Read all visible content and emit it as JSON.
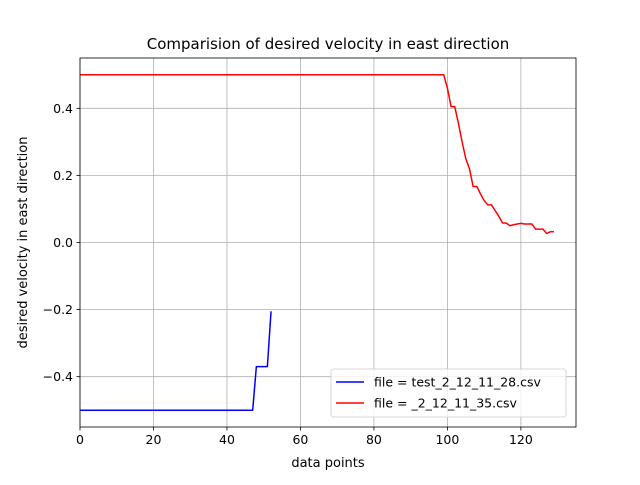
{
  "chart_data": {
    "type": "line",
    "title": "Comparision of desired velocity in east direction",
    "xlabel": "data points",
    "ylabel": "desired velocity in east direction",
    "xlim": [
      0,
      135
    ],
    "ylim": [
      -0.55,
      0.55
    ],
    "xticks": [
      0,
      20,
      40,
      60,
      80,
      100,
      120
    ],
    "xtick_labels": [
      "0",
      "20",
      "40",
      "60",
      "80",
      "100",
      "120"
    ],
    "yticks": [
      -0.4,
      -0.2,
      0.0,
      0.2,
      0.4
    ],
    "ytick_labels": [
      "−0.4",
      "−0.2",
      "0.0",
      "0.2",
      "0.4"
    ],
    "grid": true,
    "legend_position": "lower-right",
    "series": [
      {
        "name": "file = test_2_12_11_28.csv",
        "color": "#0000ff",
        "points": [
          [
            0,
            -0.5
          ],
          [
            47,
            -0.5
          ],
          [
            48,
            -0.37
          ],
          [
            51,
            -0.37
          ],
          [
            52,
            -0.205
          ]
        ]
      },
      {
        "name": "file = _2_12_11_35.csv",
        "color": "#ff0000",
        "points": [
          [
            0,
            0.5
          ],
          [
            99,
            0.5
          ],
          [
            100,
            0.46
          ],
          [
            101,
            0.405
          ],
          [
            102,
            0.405
          ],
          [
            103,
            0.355
          ],
          [
            104,
            0.3
          ],
          [
            105,
            0.25
          ],
          [
            106,
            0.22
          ],
          [
            107,
            0.167
          ],
          [
            108,
            0.167
          ],
          [
            109,
            0.145
          ],
          [
            110,
            0.125
          ],
          [
            111,
            0.112
          ],
          [
            112,
            0.112
          ],
          [
            113,
            0.095
          ],
          [
            114,
            0.078
          ],
          [
            115,
            0.058
          ],
          [
            116,
            0.058
          ],
          [
            117,
            0.05
          ],
          [
            118,
            0.053
          ],
          [
            119,
            0.055
          ],
          [
            120,
            0.057
          ],
          [
            121,
            0.055
          ],
          [
            122,
            0.055
          ],
          [
            123,
            0.055
          ],
          [
            124,
            0.04
          ],
          [
            125,
            0.04
          ],
          [
            126,
            0.04
          ],
          [
            127,
            0.027
          ],
          [
            128,
            0.032
          ],
          [
            129,
            0.032
          ]
        ]
      }
    ]
  }
}
